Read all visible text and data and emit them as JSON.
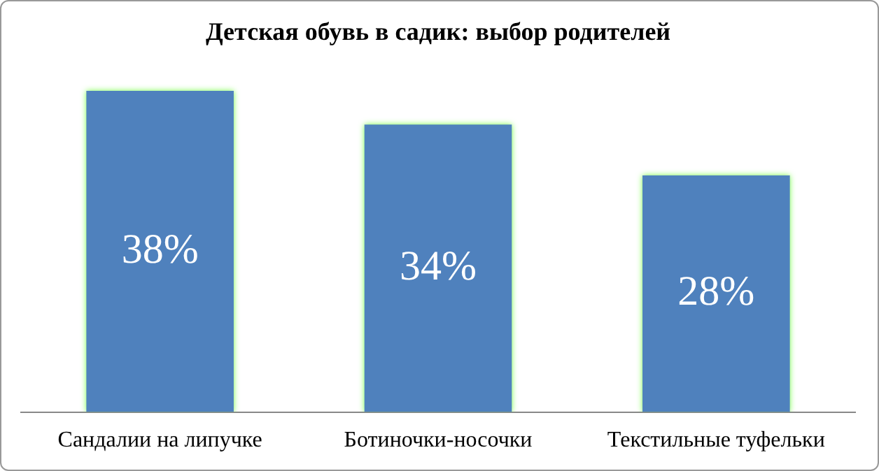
{
  "chart_data": {
    "type": "bar",
    "title": "Детская обувь в садик: выбор родителей",
    "categories": [
      "Сандалии на липучке",
      "Ботиночки-носочки",
      "Текстильные туфельки"
    ],
    "values": [
      38,
      34,
      28
    ],
    "value_labels": [
      "38%",
      "34%",
      "28%"
    ],
    "color": "#4f81bd",
    "legend": false,
    "grid": false
  }
}
